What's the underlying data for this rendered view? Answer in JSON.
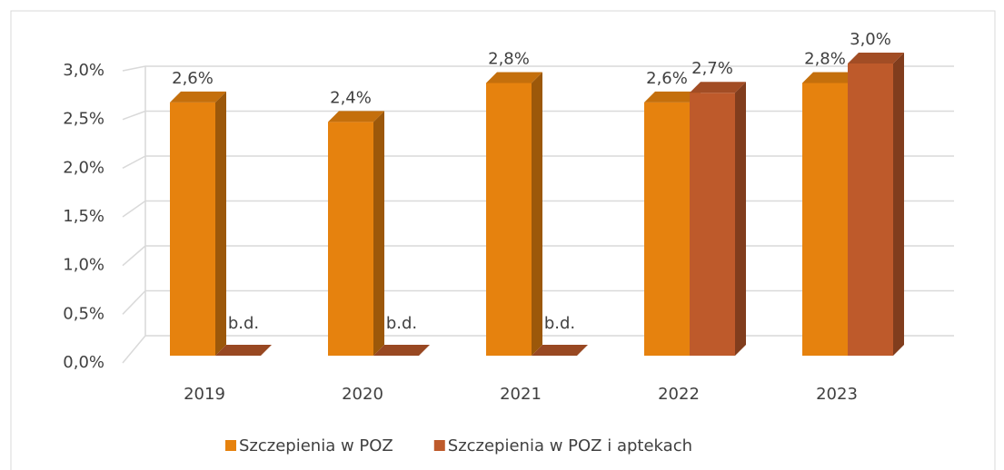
{
  "chart_data": {
    "type": "bar3d",
    "categories": [
      "2019",
      "2020",
      "2021",
      "2022",
      "2023"
    ],
    "series": [
      {
        "name": "Szczepienia w POZ",
        "color": "#e6820e",
        "values": [
          2.6,
          2.4,
          2.8,
          2.6,
          2.8
        ],
        "value_labels": [
          "2,6%",
          "2,4%",
          "2,8%",
          "2,6%",
          "2,8%"
        ]
      },
      {
        "name": "Szczepienia w POZ i aptekach",
        "color": "#be5a2b",
        "values": [
          null,
          null,
          null,
          2.7,
          3.0
        ],
        "value_labels": [
          "b.d.",
          "b.d.",
          "b.d.",
          "2,7%",
          "3,0%"
        ]
      }
    ],
    "ylim": [
      0,
      3.0
    ],
    "yticks": [
      {
        "value": 0,
        "label": "0,0%"
      },
      {
        "value": 0.5,
        "label": "0,5%"
      },
      {
        "value": 1.0,
        "label": "1,0%"
      },
      {
        "value": 1.5,
        "label": "1,5%"
      },
      {
        "value": 2.0,
        "label": "2,0%"
      },
      {
        "value": 2.5,
        "label": "2,5%"
      },
      {
        "value": 3.0,
        "label": "3,0%"
      }
    ],
    "grid": true,
    "legend": "bottom"
  }
}
